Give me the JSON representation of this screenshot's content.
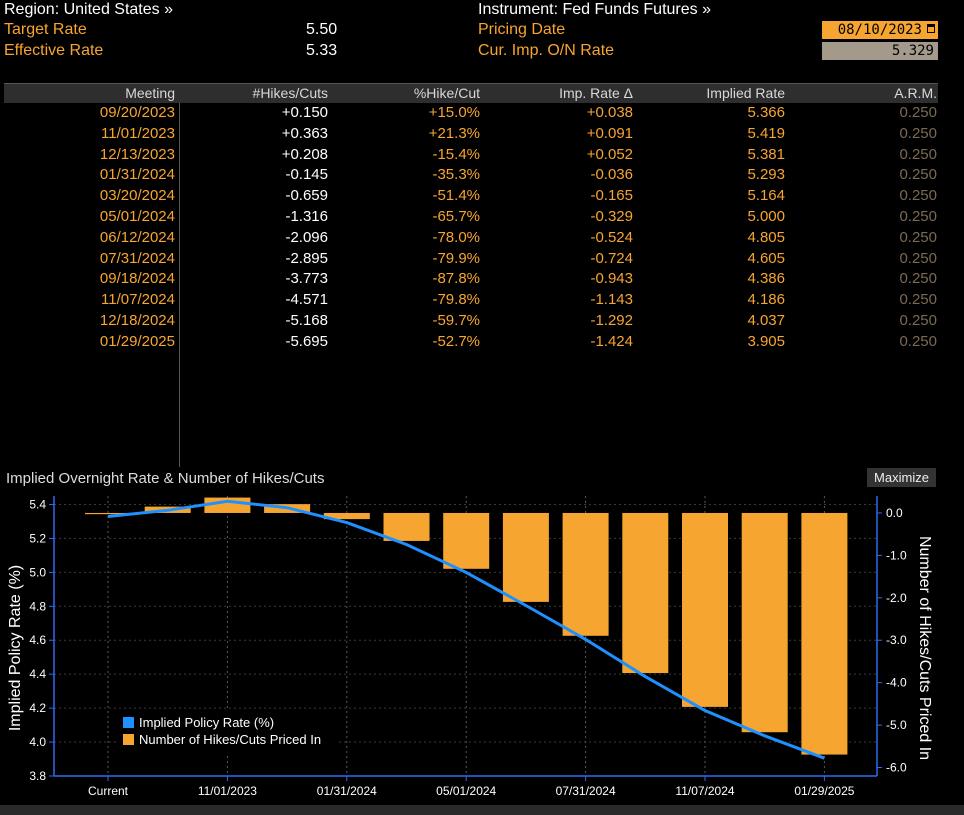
{
  "header": {
    "region_label": "Region: United States »",
    "instrument_label": "Instrument: Fed Funds Futures »",
    "target_rate_label": "Target Rate",
    "target_rate_value": "5.50",
    "effective_rate_label": "Effective Rate",
    "effective_rate_value": "5.33",
    "pricing_date_label": "Pricing Date",
    "pricing_date_value": "08/10/2023",
    "cur_imp_label": "Cur. Imp. O/N Rate",
    "cur_imp_value": "5.329"
  },
  "table": {
    "columns": [
      "Meeting",
      "#Hikes/Cuts",
      "%Hike/Cut",
      "Imp. Rate Δ",
      "Implied Rate",
      "A.R.M."
    ],
    "rows": [
      [
        "09/20/2023",
        "+0.150",
        "+15.0%",
        "+0.038",
        "5.366",
        "0.250"
      ],
      [
        "11/01/2023",
        "+0.363",
        "+21.3%",
        "+0.091",
        "5.419",
        "0.250"
      ],
      [
        "12/13/2023",
        "+0.208",
        "-15.4%",
        "+0.052",
        "5.381",
        "0.250"
      ],
      [
        "01/31/2024",
        "-0.145",
        "-35.3%",
        "-0.036",
        "5.293",
        "0.250"
      ],
      [
        "03/20/2024",
        "-0.659",
        "-51.4%",
        "-0.165",
        "5.164",
        "0.250"
      ],
      [
        "05/01/2024",
        "-1.316",
        "-65.7%",
        "-0.329",
        "5.000",
        "0.250"
      ],
      [
        "06/12/2024",
        "-2.096",
        "-78.0%",
        "-0.524",
        "4.805",
        "0.250"
      ],
      [
        "07/31/2024",
        "-2.895",
        "-79.9%",
        "-0.724",
        "4.605",
        "0.250"
      ],
      [
        "09/18/2024",
        "-3.773",
        "-87.8%",
        "-0.943",
        "4.386",
        "0.250"
      ],
      [
        "11/07/2024",
        "-4.571",
        "-79.8%",
        "-1.143",
        "4.186",
        "0.250"
      ],
      [
        "12/18/2024",
        "-5.168",
        "-59.7%",
        "-1.292",
        "4.037",
        "0.250"
      ],
      [
        "01/29/2025",
        "-5.695",
        "-52.7%",
        "-1.424",
        "3.905",
        "0.250"
      ]
    ]
  },
  "chart_title": "Implied Overnight Rate & Number of Hikes/Cuts",
  "maximize_label": "Maximize",
  "colors": {
    "orange": "#f7a531",
    "blue": "#1e90ff",
    "axis": "#2c6cf0"
  },
  "chart_data": {
    "type": "bar",
    "title": "Implied Overnight Rate & Number of Hikes/Cuts",
    "categories": [
      "Current",
      "09/20/2023",
      "11/01/2023",
      "12/13/2023",
      "01/31/2024",
      "03/20/2024",
      "05/01/2024",
      "06/12/2024",
      "07/31/2024",
      "09/18/2024",
      "11/07/2024",
      "12/18/2024",
      "01/29/2025"
    ],
    "x_tick_labels": [
      "Current",
      "11/01/2023",
      "01/31/2024",
      "05/01/2024",
      "07/31/2024",
      "11/07/2024",
      "01/29/2025"
    ],
    "ylabel": "Implied Policy Rate (%)",
    "y2label": "Number of Hikes/Cuts Priced In",
    "ylim": [
      3.8,
      5.45
    ],
    "y2lim": [
      -6.2,
      0.4
    ],
    "yticks": [
      3.8,
      4.0,
      4.2,
      4.4,
      4.6,
      4.8,
      5.0,
      5.2,
      5.4
    ],
    "y2ticks": [
      0.0,
      -1.0,
      -2.0,
      -3.0,
      -4.0,
      -5.0,
      -6.0
    ],
    "series": [
      {
        "name": "Implied Policy Rate (%)",
        "type": "line",
        "axis": "left",
        "values": [
          5.329,
          5.366,
          5.419,
          5.381,
          5.293,
          5.164,
          5.0,
          4.805,
          4.605,
          4.386,
          4.186,
          4.037,
          3.905
        ]
      },
      {
        "name": "Number of Hikes/Cuts Priced In",
        "type": "bar",
        "axis": "right",
        "values": [
          0.0,
          0.15,
          0.363,
          0.208,
          -0.145,
          -0.659,
          -1.316,
          -2.096,
          -2.895,
          -3.773,
          -4.571,
          -5.168,
          -5.695
        ]
      }
    ],
    "legend": "bottom-left",
    "grid": true
  }
}
